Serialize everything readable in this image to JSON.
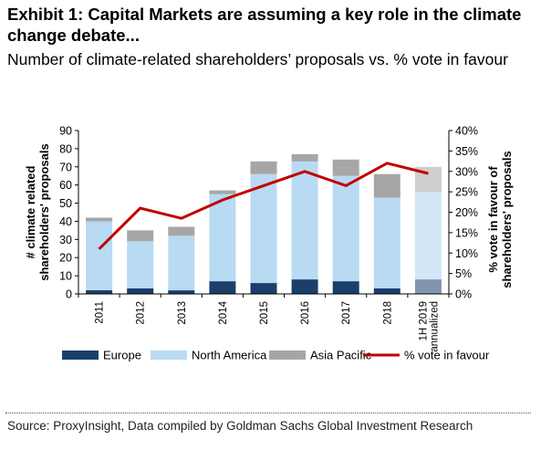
{
  "header": {
    "title": "Exhibit 1: Capital Markets are assuming a key role in the climate change debate...",
    "subtitle": "Number of climate-related shareholders’ proposals vs. % vote in favour"
  },
  "footer": {
    "source": "Source: ProxyInsight, Data compiled by Goldman Sachs Global Investment Research"
  },
  "chart_data": {
    "type": "bar",
    "stacked": true,
    "categories": [
      "2011",
      "2012",
      "2013",
      "2014",
      "2015",
      "2016",
      "2017",
      "2018",
      "1H 2019 annualized"
    ],
    "series": [
      {
        "name": "Europe",
        "axis": "left",
        "color": "#1b3f6b",
        "values": [
          2,
          3,
          2,
          7,
          6,
          8,
          7,
          3,
          8
        ]
      },
      {
        "name": "North America",
        "axis": "left",
        "color": "#b8daf3",
        "values": [
          38,
          26,
          30,
          48,
          60,
          65,
          58,
          50,
          48
        ]
      },
      {
        "name": "Asia Pacific",
        "axis": "left",
        "color": "#a6a6a6",
        "values": [
          2,
          6,
          5,
          2,
          7,
          4,
          9,
          13,
          14
        ]
      },
      {
        "name": "% vote in favour",
        "axis": "right",
        "type": "line",
        "color": "#c00000",
        "values": [
          11,
          21,
          18.5,
          23,
          26.5,
          30,
          26.5,
          32,
          29.5
        ]
      }
    ],
    "last_category_lighter": true,
    "ylabel": "# climate related shareholders' proposals",
    "ylabel_right": "% vote in favour of shareholders' proposals",
    "ylim": [
      0,
      90
    ],
    "yticks": [
      "0",
      "10",
      "20",
      "30",
      "40",
      "50",
      "60",
      "70",
      "80",
      "90"
    ],
    "ylim_right": [
      0,
      40
    ],
    "yticks_right": [
      "0%",
      "5%",
      "10%",
      "15%",
      "20%",
      "25%",
      "30%",
      "35%",
      "40%"
    ],
    "legend_position": "bottom",
    "grid": false
  }
}
